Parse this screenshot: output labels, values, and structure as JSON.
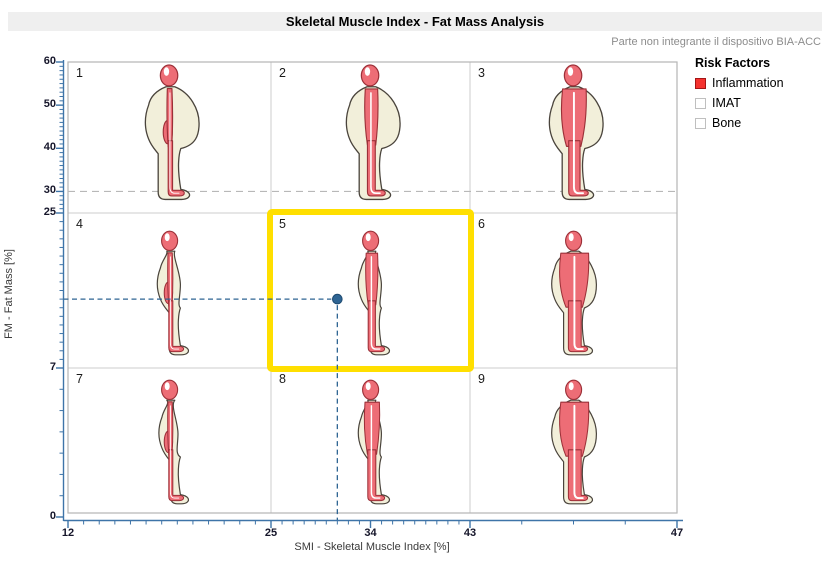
{
  "title": "Skeletal Muscle Index - Fat Mass Analysis",
  "subtitle": "Parte non integrante il dispositivo BIA-ACC",
  "legend": {
    "title": "Risk Factors",
    "items": [
      {
        "label": "Inflammation",
        "filled": true,
        "color": "#f5322f"
      },
      {
        "label": "IMAT",
        "filled": false,
        "color": "#ffffff"
      },
      {
        "label": "Bone",
        "filled": false,
        "color": "#ffffff"
      }
    ]
  },
  "x_axis": {
    "label": "SMI - Skeletal Muscle Index [%]",
    "major_ticks": [
      12,
      25,
      34,
      43,
      47
    ],
    "range": [
      12,
      47
    ]
  },
  "y_axis": {
    "label": "FM - Fat Mass [%]",
    "major_ticks": [
      0,
      7,
      25,
      30,
      40,
      50,
      60
    ],
    "range": [
      0,
      60
    ]
  },
  "marker": {
    "smi": 31,
    "fm": 15
  },
  "reference_line_fm": 30,
  "highlighted_cell": 5,
  "cells": [
    {
      "number": "1",
      "fat": "high",
      "muscle": "low",
      "body_variant": "obese",
      "muscle_variant": "thin"
    },
    {
      "number": "2",
      "fat": "high",
      "muscle": "normal",
      "body_variant": "obese",
      "muscle_variant": "medium"
    },
    {
      "number": "3",
      "fat": "high",
      "muscle": "high",
      "body_variant": "obese",
      "muscle_variant": "thick"
    },
    {
      "number": "4",
      "fat": "normal",
      "muscle": "low",
      "body_variant": "lean",
      "muscle_variant": "thin"
    },
    {
      "number": "5",
      "fat": "normal",
      "muscle": "normal",
      "body_variant": "lean",
      "muscle_variant": "medium"
    },
    {
      "number": "6",
      "fat": "normal",
      "muscle": "high",
      "body_variant": "athletic",
      "muscle_variant": "massive"
    },
    {
      "number": "7",
      "fat": "low",
      "muscle": "low",
      "body_variant": "slim",
      "muscle_variant": "thin"
    },
    {
      "number": "8",
      "fat": "low",
      "muscle": "normal",
      "body_variant": "lean",
      "muscle_variant": "full"
    },
    {
      "number": "9",
      "fat": "low",
      "muscle": "high",
      "body_variant": "athletic",
      "muscle_variant": "massive"
    }
  ],
  "colors": {
    "highlight_yellow": "#ffdf00",
    "axis_blue": "#3e74a8",
    "marker_blue": "#2e6493",
    "grid_gray": "#cccccc",
    "plot_border": "#b5b5b5",
    "reference_dash_gray": "#b8b8b8",
    "fat_fill": "#f2efda",
    "fat_outline": "#4a443c",
    "muscle_fill": "#ed6d76",
    "muscle_outline": "#9c3038",
    "inflammation_red": "#f5322f"
  },
  "chart_data": {
    "type": "scatter",
    "title": "Skeletal Muscle Index - Fat Mass Analysis",
    "xlabel": "SMI - Skeletal Muscle Index [%]",
    "ylabel": "FM - Fat Mass [%]",
    "xlim": [
      12,
      47
    ],
    "ylim": [
      0,
      60
    ],
    "x_ticks": [
      12,
      25,
      34,
      43,
      47
    ],
    "y_ticks": [
      0,
      7,
      25,
      30,
      40,
      50,
      60
    ],
    "grid": "3x3 zones",
    "x_zone_boundaries": [
      12,
      25,
      43,
      47
    ],
    "y_zone_boundaries": [
      0,
      7,
      25,
      60
    ],
    "points": [
      {
        "smi": 31,
        "fm": 15
      }
    ],
    "reference_lines": {
      "horizontal_dashed_fm": 30
    },
    "highlighted_zone": 5,
    "legend_position": "top-right",
    "zones": [
      {
        "number": 1,
        "smi_level": "low",
        "fm_level": "high"
      },
      {
        "number": 2,
        "smi_level": "normal",
        "fm_level": "high"
      },
      {
        "number": 3,
        "smi_level": "high",
        "fm_level": "high"
      },
      {
        "number": 4,
        "smi_level": "low",
        "fm_level": "normal"
      },
      {
        "number": 5,
        "smi_level": "normal",
        "fm_level": "normal"
      },
      {
        "number": 6,
        "smi_level": "high",
        "fm_level": "normal"
      },
      {
        "number": 7,
        "smi_level": "low",
        "fm_level": "low"
      },
      {
        "number": 8,
        "smi_level": "normal",
        "fm_level": "low"
      },
      {
        "number": 9,
        "smi_level": "high",
        "fm_level": "low"
      }
    ]
  }
}
